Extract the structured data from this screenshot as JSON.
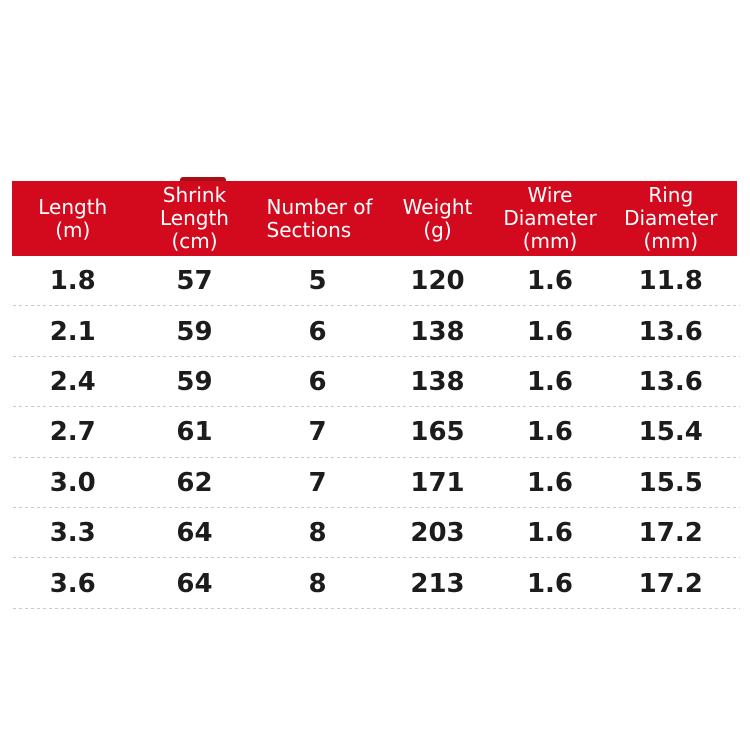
{
  "page": {
    "background_color": "#ffffff",
    "accent_red": "#d30a1e",
    "divider_color": "#c9c9c9",
    "row_text_color": "#1c1c1c",
    "header_text_color": "#ffffff"
  },
  "table": {
    "columns": [
      {
        "id": "length",
        "lines": [
          "Length",
          "(m)"
        ]
      },
      {
        "id": "shrink-length",
        "lines": [
          "Shrink",
          "Length",
          "(cm)"
        ]
      },
      {
        "id": "sections",
        "lines": [
          "Number of",
          "Sections"
        ]
      },
      {
        "id": "weight",
        "lines": [
          "Weight",
          "(g)"
        ]
      },
      {
        "id": "wire-diameter",
        "lines": [
          "Wire",
          "Diameter",
          "(mm)"
        ]
      },
      {
        "id": "ring-diameter",
        "lines": [
          "Ring",
          "Diameter",
          "(mm)"
        ]
      }
    ],
    "rows": [
      [
        "1.8",
        "57",
        "5",
        "120",
        "1.6",
        "11.8"
      ],
      [
        "2.1",
        "59",
        "6",
        "138",
        "1.6",
        "13.6"
      ],
      [
        "2.4",
        "59",
        "6",
        "138",
        "1.6",
        "13.6"
      ],
      [
        "2.7",
        "61",
        "7",
        "165",
        "1.6",
        "15.4"
      ],
      [
        "3.0",
        "62",
        "7",
        "171",
        "1.6",
        "15.5"
      ],
      [
        "3.3",
        "64",
        "8",
        "203",
        "1.6",
        "17.2"
      ],
      [
        "3.6",
        "64",
        "8",
        "213",
        "1.6",
        "17.2"
      ]
    ]
  },
  "chart_data": {
    "type": "table",
    "title": "",
    "columns": [
      "Length (m)",
      "Shrink Length (cm)",
      "Number of Sections",
      "Weight (g)",
      "Wire Diameter (mm)",
      "Ring Diameter (mm)"
    ],
    "rows": [
      [
        1.8,
        57,
        5,
        120,
        1.6,
        11.8
      ],
      [
        2.1,
        59,
        6,
        138,
        1.6,
        13.6
      ],
      [
        2.4,
        59,
        6,
        138,
        1.6,
        13.6
      ],
      [
        2.7,
        61,
        7,
        165,
        1.6,
        15.4
      ],
      [
        3.0,
        62,
        7,
        171,
        1.6,
        15.5
      ],
      [
        3.3,
        64,
        8,
        203,
        1.6,
        17.2
      ],
      [
        3.6,
        64,
        8,
        213,
        1.6,
        17.2
      ]
    ],
    "layout": {
      "header_background": "#d30a1e",
      "header_text_color": "#ffffff",
      "row_dividers": "dashed",
      "grid": "horizontal-only"
    }
  }
}
